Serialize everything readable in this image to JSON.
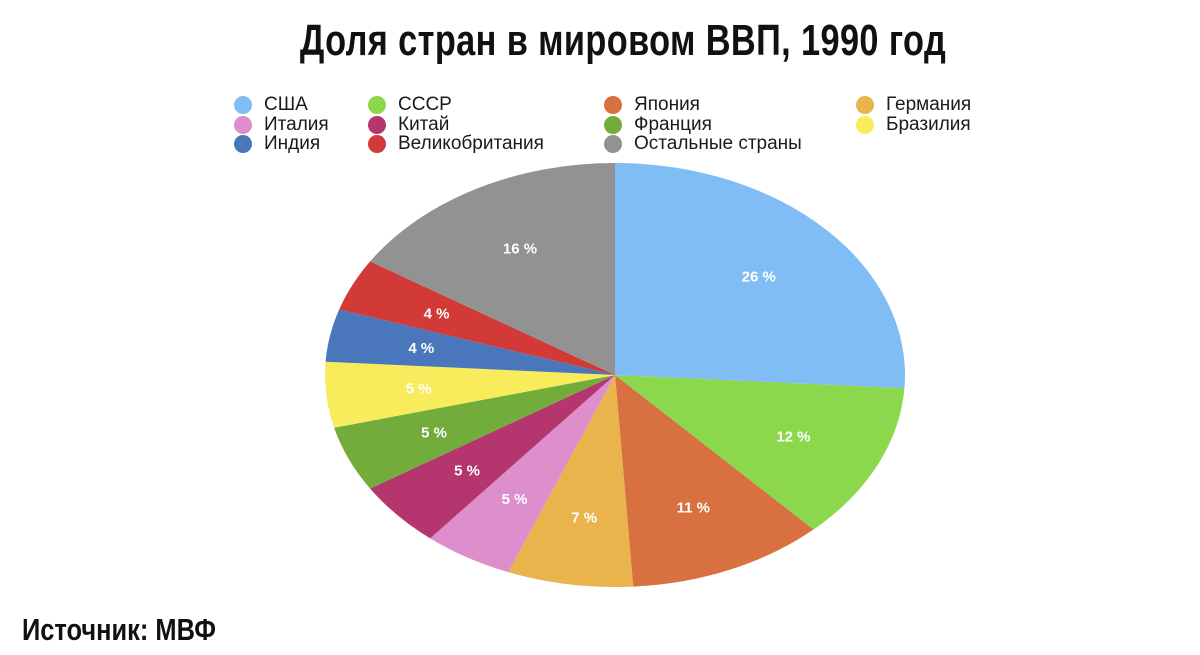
{
  "chart_data": {
    "type": "pie",
    "title": "Доля стран в мировом ВВП, 1990 год",
    "legend_position": "top",
    "categories": [
      "США",
      "СССР",
      "Япония",
      "Германия",
      "Италия",
      "Китай",
      "Франция",
      "Бразилия",
      "Индия",
      "Великобритания",
      "Остальные страны"
    ],
    "values": [
      26,
      12,
      11,
      7,
      5,
      5,
      5,
      5,
      4,
      4,
      16
    ],
    "data_labels": [
      "26 %",
      "12 %",
      "11 %",
      "7 %",
      "5 %",
      "5 %",
      "5 %",
      "5 %",
      "4 %",
      "4 %",
      "16 %"
    ],
    "colors": [
      "#80bdf5",
      "#8cd84c",
      "#d8713f",
      "#e9b44c",
      "#dd8ecb",
      "#b5366e",
      "#72ad3c",
      "#f9ec5c",
      "#4a77bb",
      "#d13a36",
      "#929292"
    ]
  },
  "source": "Источник: МВФ"
}
